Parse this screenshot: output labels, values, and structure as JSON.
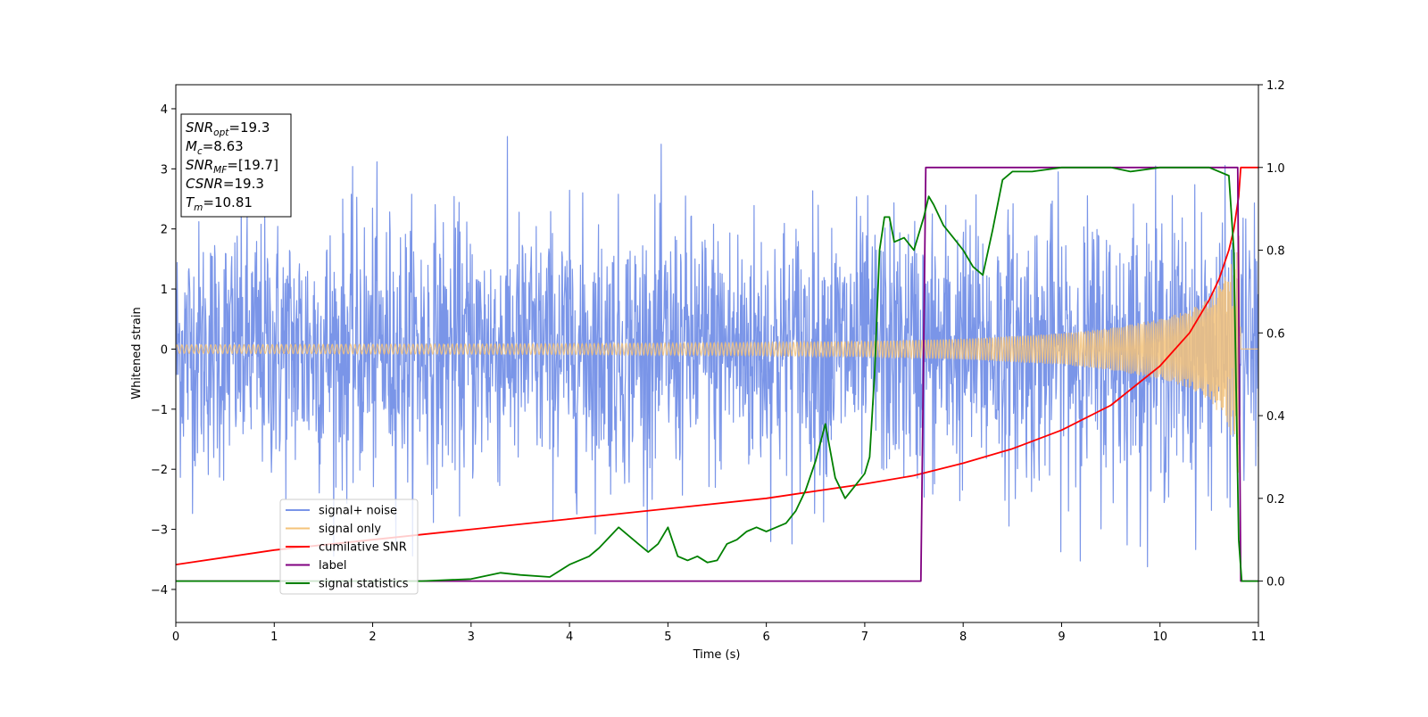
{
  "chart_data": {
    "type": "line",
    "xlabel": "Time (s)",
    "ylabel": "Whitened strain",
    "xlim": [
      0,
      11
    ],
    "ylim_left": [
      -4.55,
      4.4
    ],
    "ylim_right": [
      -0.1,
      1.2
    ],
    "x_ticks": [
      0,
      1,
      2,
      3,
      4,
      5,
      6,
      7,
      8,
      9,
      10,
      11
    ],
    "x_tick_labels": [
      "0",
      "1",
      "2",
      "3",
      "4",
      "5",
      "6",
      "7",
      "8",
      "9",
      "10",
      "11"
    ],
    "y_left_ticks": [
      -4,
      -3,
      -2,
      -1,
      0,
      1,
      2,
      3,
      4
    ],
    "y_left_tick_labels": [
      "−4",
      "−3",
      "−2",
      "−1",
      "0",
      "1",
      "2",
      "3",
      "4"
    ],
    "y_right_ticks": [
      0.0,
      0.2,
      0.4,
      0.6,
      0.8,
      1.0,
      1.2
    ],
    "y_right_tick_labels": [
      "0.0",
      "0.2",
      "0.4",
      "0.6",
      "0.8",
      "1.0",
      "1.2"
    ],
    "info_box": {
      "lines": [
        {
          "var": "SNR",
          "sub": "opt",
          "value": "=19.3"
        },
        {
          "var": "M",
          "sub": "c",
          "value": "=8.63"
        },
        {
          "var": "SNR",
          "sub": "MF",
          "value": "=[19.7]"
        },
        {
          "var": "CSNR",
          "sub": "",
          "value": "=19.3"
        },
        {
          "var": "T",
          "sub": "m",
          "value": "=10.81"
        }
      ]
    },
    "legend": {
      "position": "lower-left",
      "entries": [
        {
          "label": "signal+ noise",
          "color": "#7a95e8"
        },
        {
          "label": "signal only",
          "color": "#f5c37a"
        },
        {
          "label": "cumilative SNR",
          "color": "#ff0000"
        },
        {
          "label": "label",
          "color": "#800080"
        },
        {
          "label": "signal statistics",
          "color": "#008000"
        }
      ]
    },
    "series": [
      {
        "name": "signal+ noise",
        "axis": "left",
        "color": "#7a95e8",
        "kind": "noise",
        "envelope_x": [
          0,
          1,
          2,
          3,
          4,
          5,
          6,
          7,
          8,
          9,
          10,
          11
        ],
        "envelope_amp": [
          2.3,
          2.4,
          2.5,
          2.4,
          2.4,
          2.4,
          2.5,
          2.4,
          2.5,
          2.5,
          2.6,
          2.4
        ]
      },
      {
        "name": "signal only",
        "axis": "left",
        "color": "#f5c37a",
        "kind": "chirp",
        "envelope_x": [
          0,
          2,
          4,
          6,
          7,
          8,
          9,
          9.5,
          10,
          10.3,
          10.5,
          10.7,
          10.8,
          10.82
        ],
        "envelope_amp": [
          0.07,
          0.08,
          0.09,
          0.11,
          0.13,
          0.17,
          0.26,
          0.35,
          0.5,
          0.65,
          0.85,
          1.3,
          2.1,
          0
        ]
      },
      {
        "name": "cumilative SNR",
        "axis": "right",
        "color": "#ff0000",
        "x": [
          0,
          1,
          2,
          3,
          4,
          5,
          6,
          7,
          7.5,
          8,
          8.5,
          9,
          9.5,
          10,
          10.3,
          10.5,
          10.6,
          10.7,
          10.75,
          10.8,
          10.82,
          11
        ],
        "y": [
          0.04,
          0.075,
          0.1,
          0.125,
          0.15,
          0.175,
          0.2,
          0.235,
          0.255,
          0.285,
          0.32,
          0.365,
          0.425,
          0.52,
          0.6,
          0.68,
          0.73,
          0.8,
          0.85,
          0.93,
          1.0,
          1.0
        ]
      },
      {
        "name": "label",
        "axis": "right",
        "color": "#800080",
        "x": [
          0,
          7.57,
          7.62,
          10.79,
          10.82,
          11
        ],
        "y": [
          0.0,
          0.0,
          1.0,
          1.0,
          0.0,
          0.0
        ]
      },
      {
        "name": "signal statistics",
        "axis": "right",
        "color": "#008000",
        "x": [
          0,
          1,
          2,
          2.5,
          3,
          3.3,
          3.5,
          3.8,
          4,
          4.2,
          4.3,
          4.5,
          4.7,
          4.8,
          4.9,
          5.0,
          5.1,
          5.2,
          5.3,
          5.4,
          5.5,
          5.6,
          5.7,
          5.8,
          5.9,
          6.0,
          6.1,
          6.2,
          6.3,
          6.4,
          6.5,
          6.6,
          6.7,
          6.8,
          6.9,
          7.0,
          7.05,
          7.1,
          7.15,
          7.2,
          7.25,
          7.3,
          7.4,
          7.5,
          7.6,
          7.65,
          7.7,
          7.8,
          7.9,
          8.0,
          8.1,
          8.2,
          8.3,
          8.4,
          8.5,
          8.7,
          9.0,
          9.5,
          9.7,
          10.0,
          10.3,
          10.5,
          10.7,
          10.75,
          10.8,
          10.83,
          11
        ],
        "y": [
          0.0,
          0.0,
          0.0,
          0.0,
          0.005,
          0.02,
          0.015,
          0.01,
          0.04,
          0.06,
          0.08,
          0.13,
          0.09,
          0.07,
          0.09,
          0.13,
          0.06,
          0.05,
          0.06,
          0.045,
          0.05,
          0.09,
          0.1,
          0.12,
          0.13,
          0.12,
          0.13,
          0.14,
          0.17,
          0.22,
          0.29,
          0.38,
          0.25,
          0.2,
          0.23,
          0.26,
          0.3,
          0.5,
          0.8,
          0.88,
          0.88,
          0.82,
          0.83,
          0.8,
          0.88,
          0.93,
          0.91,
          0.86,
          0.83,
          0.8,
          0.76,
          0.74,
          0.85,
          0.97,
          0.99,
          0.99,
          1.0,
          1.0,
          0.99,
          1.0,
          1.0,
          1.0,
          0.98,
          0.8,
          0.1,
          0.0,
          0.0
        ]
      }
    ]
  }
}
